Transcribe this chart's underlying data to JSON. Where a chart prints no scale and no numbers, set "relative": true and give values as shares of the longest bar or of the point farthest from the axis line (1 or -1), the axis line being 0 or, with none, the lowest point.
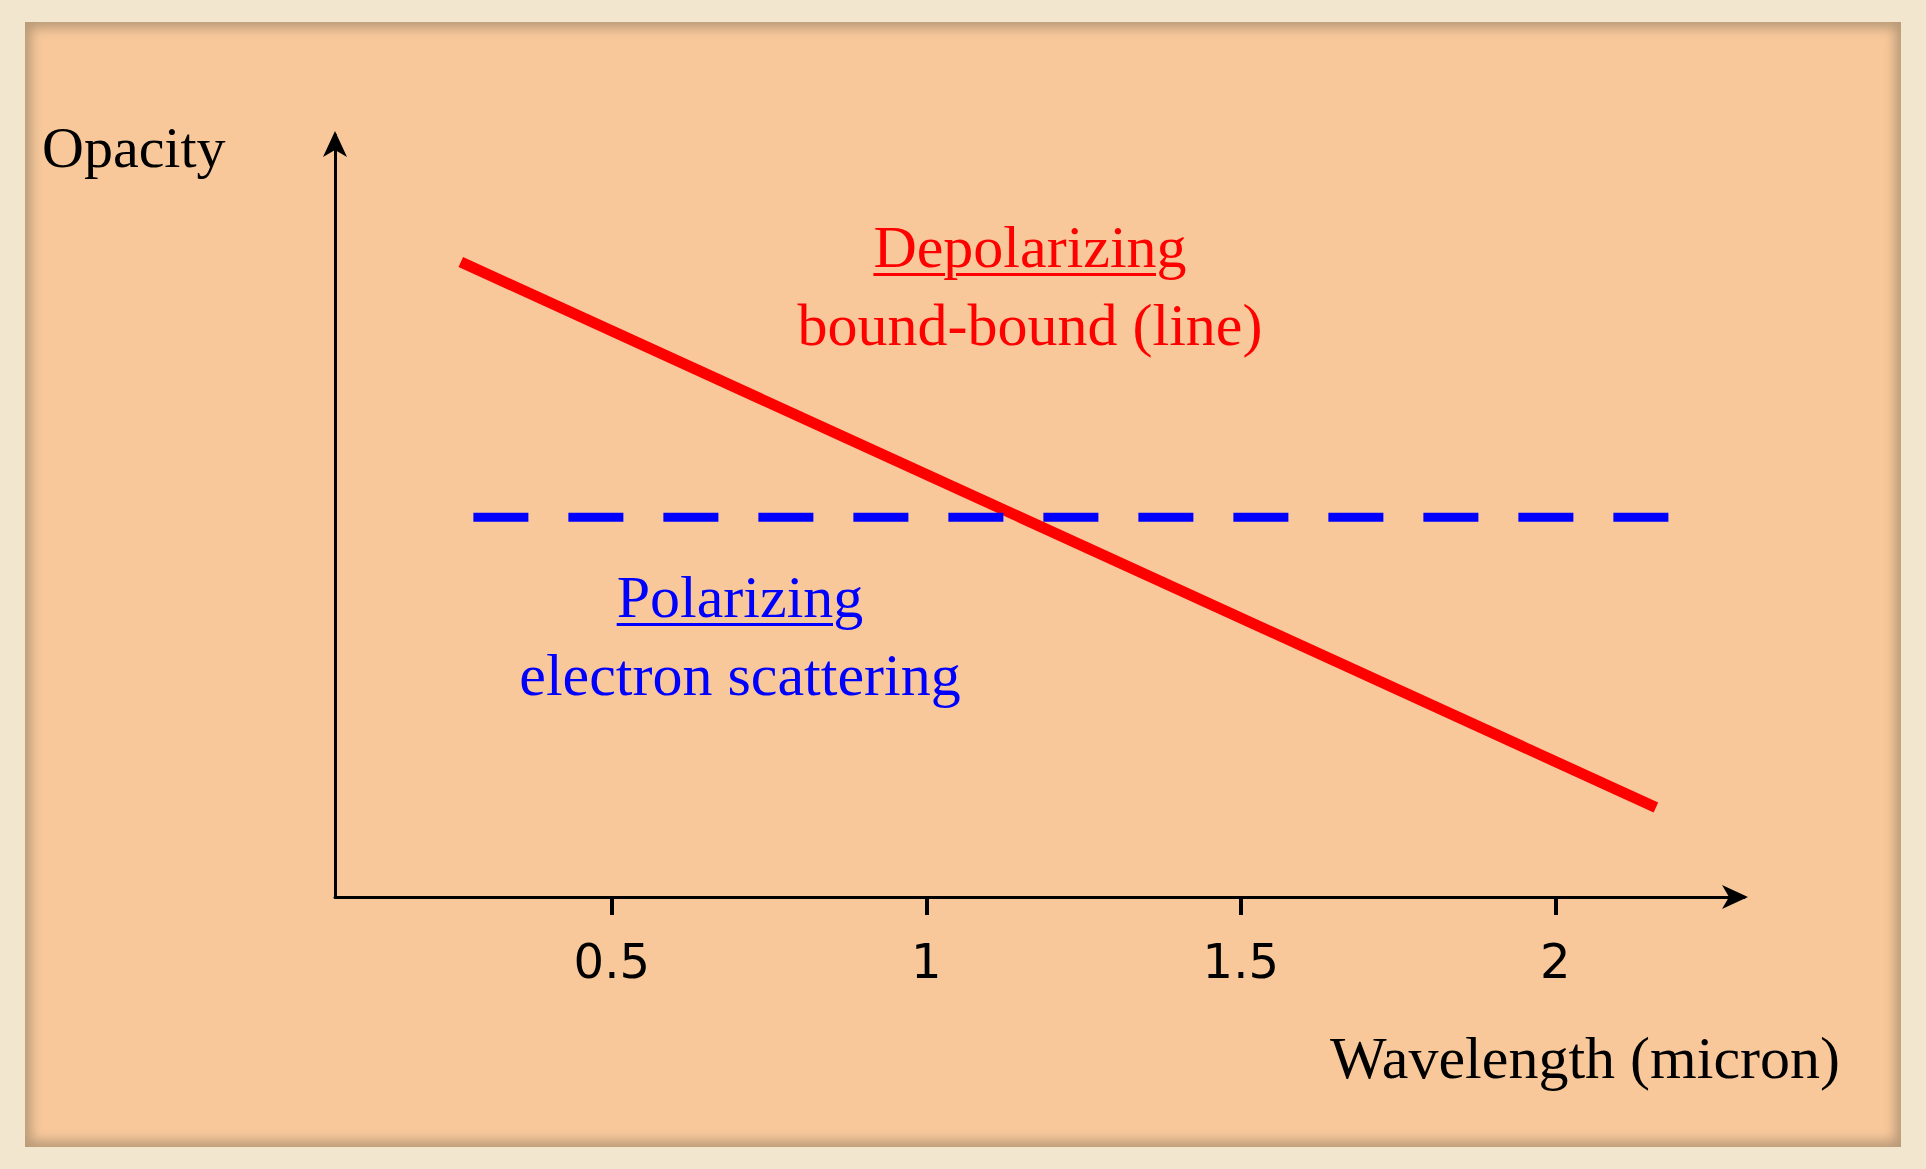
{
  "chart_data": {
    "type": "line",
    "relative": true,
    "xlabel": "Wavelength (micron)",
    "ylabel": "Opacity",
    "xlim": [
      0.06,
      2.3
    ],
    "xticks": [
      0.5,
      1,
      1.5,
      2
    ],
    "grid": false,
    "legend": false,
    "marker": "none",
    "series": [
      {
        "name": "Depolarizing bound-bound (line)",
        "color": "#ff0000",
        "line_style": "solid",
        "x": [
          0.26,
          2.16
        ],
        "values": [
          1,
          0.141
        ]
      },
      {
        "name": "Polarizing electron scattering",
        "color": "#0000ff",
        "line_style": "dashed",
        "x": [
          0.28,
          2.18
        ],
        "values": [
          0.598,
          0.598
        ]
      }
    ]
  }
}
